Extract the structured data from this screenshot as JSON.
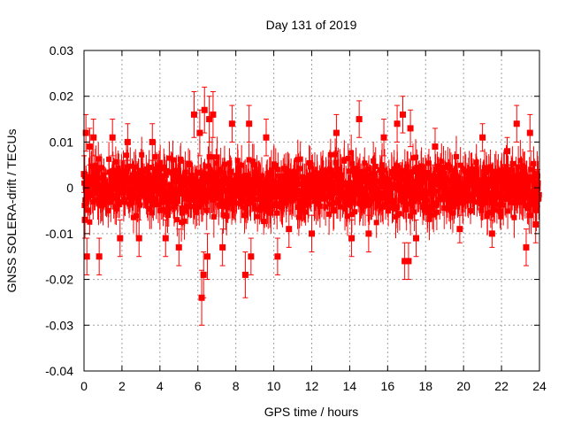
{
  "chart_data": {
    "type": "scatter",
    "title": "Day 131 of 2019",
    "xlabel": "GPS time / hours",
    "ylabel": "GNSS SOLERA-drift / TECUs",
    "xlim": [
      0,
      24
    ],
    "ylim": [
      -0.04,
      0.03
    ],
    "xticks": [
      0,
      2,
      4,
      6,
      8,
      10,
      12,
      14,
      16,
      18,
      20,
      22,
      24
    ],
    "xtick_labels": [
      "0",
      "2",
      "4",
      "6",
      "8",
      "10",
      "12",
      "14",
      "16",
      "18",
      "20",
      "22",
      "24"
    ],
    "yticks": [
      -0.04,
      -0.03,
      -0.02,
      -0.01,
      0,
      0.01,
      0.02,
      0.03
    ],
    "ytick_labels": [
      "-0.04",
      "-0.03",
      "-0.02",
      "-0.01",
      "0",
      "0.01",
      "0.02",
      "0.03"
    ],
    "grid": true,
    "legend": "none",
    "series": [
      {
        "name": "SOLERA drift",
        "color": "#ff0000",
        "marker": "square",
        "error_bars": true,
        "points": [
          {
            "x": 0.0,
            "y": 0.003,
            "err": 0.004
          },
          {
            "x": 0.05,
            "y": -0.007,
            "err": 0.004
          },
          {
            "x": 0.1,
            "y": 0.012,
            "err": 0.004
          },
          {
            "x": 0.15,
            "y": -0.015,
            "err": 0.004
          },
          {
            "x": 0.3,
            "y": 0.009,
            "err": 0.004
          },
          {
            "x": 0.5,
            "y": 0.011,
            "err": 0.004
          },
          {
            "x": 0.8,
            "y": -0.015,
            "err": 0.004
          },
          {
            "x": 1.5,
            "y": 0.011,
            "err": 0.004
          },
          {
            "x": 1.9,
            "y": -0.011,
            "err": 0.004
          },
          {
            "x": 2.3,
            "y": 0.01,
            "err": 0.004
          },
          {
            "x": 2.9,
            "y": -0.011,
            "err": 0.004
          },
          {
            "x": 3.6,
            "y": 0.01,
            "err": 0.004
          },
          {
            "x": 4.3,
            "y": -0.011,
            "err": 0.004
          },
          {
            "x": 5.0,
            "y": -0.013,
            "err": 0.004
          },
          {
            "x": 5.8,
            "y": 0.016,
            "err": 0.005
          },
          {
            "x": 6.1,
            "y": 0.012,
            "err": 0.005
          },
          {
            "x": 6.2,
            "y": -0.024,
            "err": 0.006
          },
          {
            "x": 6.3,
            "y": -0.019,
            "err": 0.005
          },
          {
            "x": 6.35,
            "y": 0.017,
            "err": 0.005
          },
          {
            "x": 6.5,
            "y": -0.015,
            "err": 0.005
          },
          {
            "x": 6.6,
            "y": 0.015,
            "err": 0.005
          },
          {
            "x": 6.8,
            "y": 0.016,
            "err": 0.005
          },
          {
            "x": 7.3,
            "y": -0.013,
            "err": 0.004
          },
          {
            "x": 7.8,
            "y": 0.014,
            "err": 0.004
          },
          {
            "x": 8.5,
            "y": -0.019,
            "err": 0.005
          },
          {
            "x": 8.7,
            "y": 0.014,
            "err": 0.004
          },
          {
            "x": 8.8,
            "y": -0.015,
            "err": 0.004
          },
          {
            "x": 9.6,
            "y": 0.011,
            "err": 0.004
          },
          {
            "x": 10.2,
            "y": -0.015,
            "err": 0.004
          },
          {
            "x": 10.8,
            "y": -0.009,
            "err": 0.004
          },
          {
            "x": 12.0,
            "y": -0.01,
            "err": 0.004
          },
          {
            "x": 13.3,
            "y": 0.012,
            "err": 0.004
          },
          {
            "x": 14.1,
            "y": -0.011,
            "err": 0.004
          },
          {
            "x": 14.5,
            "y": 0.015,
            "err": 0.004
          },
          {
            "x": 15.0,
            "y": -0.01,
            "err": 0.004
          },
          {
            "x": 15.8,
            "y": 0.011,
            "err": 0.004
          },
          {
            "x": 16.5,
            "y": 0.014,
            "err": 0.004
          },
          {
            "x": 16.8,
            "y": 0.016,
            "err": 0.004
          },
          {
            "x": 16.9,
            "y": -0.016,
            "err": 0.004
          },
          {
            "x": 17.1,
            "y": -0.016,
            "err": 0.004
          },
          {
            "x": 17.2,
            "y": 0.013,
            "err": 0.004
          },
          {
            "x": 17.5,
            "y": -0.011,
            "err": 0.004
          },
          {
            "x": 18.5,
            "y": 0.009,
            "err": 0.004
          },
          {
            "x": 19.8,
            "y": -0.009,
            "err": 0.003
          },
          {
            "x": 21.0,
            "y": 0.011,
            "err": 0.003
          },
          {
            "x": 21.5,
            "y": -0.01,
            "err": 0.003
          },
          {
            "x": 22.3,
            "y": 0.008,
            "err": 0.003
          },
          {
            "x": 22.8,
            "y": 0.014,
            "err": 0.004
          },
          {
            "x": 23.3,
            "y": -0.013,
            "err": 0.004
          },
          {
            "x": 23.5,
            "y": 0.012,
            "err": 0.004
          },
          {
            "x": 23.8,
            "y": -0.008,
            "err": 0.004
          },
          {
            "x": 23.9,
            "y": 0.0,
            "err": 0.004
          }
        ]
      }
    ],
    "dense_band": {
      "note": "bulk of samples (every ~30 s) scattered around zero",
      "center": 0.0,
      "half_width": 0.007,
      "err": 0.004
    }
  }
}
